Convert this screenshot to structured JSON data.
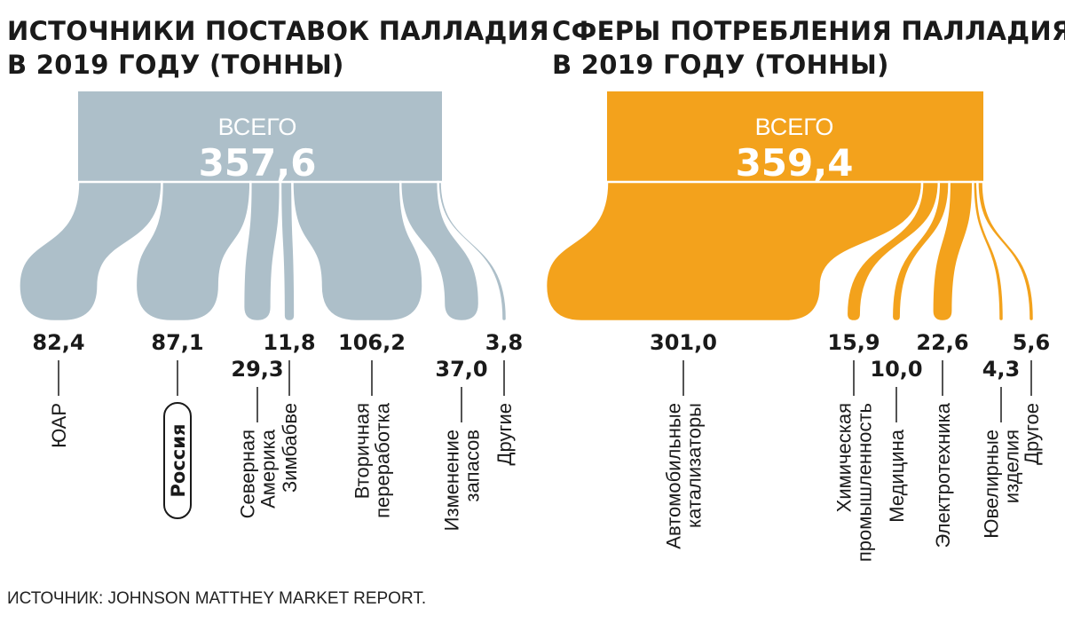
{
  "colors": {
    "supply": "#adbfc9",
    "demand": "#f3a21c",
    "text": "#1a1a1a",
    "total_label": "#ffffff"
  },
  "chart_data": [
    {
      "type": "sankey",
      "title_lines": [
        "ИСТОЧНИКИ ПОСТАВОК ПАЛЛАДИЯ",
        "В 2019 ГОДУ (ТОННЫ)"
      ],
      "total_label": "ВСЕГО",
      "total_value": "357,6",
      "items": [
        {
          "label_lines": [
            "ЮАР"
          ],
          "value": 82.4,
          "value_text": "82,4"
        },
        {
          "label_lines": [
            "Россия"
          ],
          "value": 87.1,
          "value_text": "87,1",
          "highlight": true
        },
        {
          "label_lines": [
            "Северная",
            "Америка"
          ],
          "value": 29.3,
          "value_text": "29,3"
        },
        {
          "label_lines": [
            "Зимбабве"
          ],
          "value": 11.8,
          "value_text": "11,8"
        },
        {
          "label_lines": [
            "Вторичная",
            "переработка"
          ],
          "value": 106.2,
          "value_text": "106,2"
        },
        {
          "label_lines": [
            "Изменение",
            "запасов"
          ],
          "value": 37.0,
          "value_text": "37,0"
        },
        {
          "label_lines": [
            "Другие"
          ],
          "value": 3.8,
          "value_text": "3,8"
        }
      ]
    },
    {
      "type": "sankey",
      "title_lines": [
        "СФЕРЫ ПОТРЕБЛЕНИЯ ПАЛЛАДИЯ",
        "В 2019 ГОДУ (ТОННЫ)"
      ],
      "total_label": "ВСЕГО",
      "total_value": "359,4",
      "items": [
        {
          "label_lines": [
            "Автомобильные",
            "катализаторы"
          ],
          "value": 301.0,
          "value_text": "301,0"
        },
        {
          "label_lines": [
            "Химическая",
            "промышленность"
          ],
          "value": 15.9,
          "value_text": "15,9"
        },
        {
          "label_lines": [
            "Медицина"
          ],
          "value": 10.0,
          "value_text": "10,0"
        },
        {
          "label_lines": [
            "Электротехника"
          ],
          "value": 22.6,
          "value_text": "22,6"
        },
        {
          "label_lines": [
            "Ювелирные",
            "изделия"
          ],
          "value": 4.3,
          "value_text": "4,3"
        },
        {
          "label_lines": [
            "Другое"
          ],
          "value": 5.6,
          "value_text": "5,6"
        }
      ]
    }
  ],
  "source": "ИСТОЧНИК: JOHNSON MATTHEY MARKET REPORT."
}
